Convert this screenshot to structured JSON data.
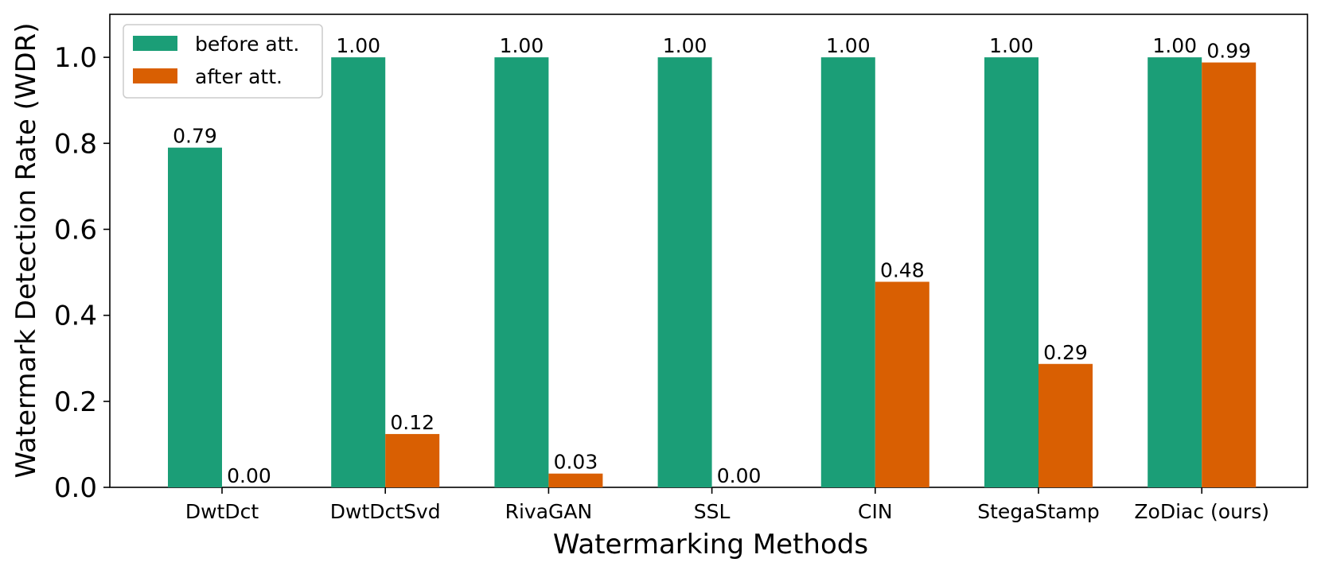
{
  "chart_data": {
    "type": "bar",
    "title": "",
    "xlabel": "Watermarking Methods",
    "ylabel": "Watermark Detection Rate (WDR)",
    "ylim": [
      0,
      1.1
    ],
    "yticks": [
      "0.0",
      "0.2",
      "0.4",
      "0.6",
      "0.8",
      "1.0"
    ],
    "grid": false,
    "legend_position": "top-left",
    "categories": [
      "DwtDct",
      "DwtDctSvd",
      "RivaGAN",
      "SSL",
      "CIN",
      "StegaStamp",
      "ZoDiac (ours)"
    ],
    "series": [
      {
        "name": "before att.",
        "color": "#1b9e77",
        "values": [
          0.79,
          1.0,
          1.0,
          1.0,
          1.0,
          1.0,
          1.0
        ],
        "labels": [
          "0.79",
          "1.00",
          "1.00",
          "1.00",
          "1.00",
          "1.00",
          "1.00"
        ]
      },
      {
        "name": "after att.",
        "color": "#d95f02",
        "values": [
          0.0,
          0.124,
          0.032,
          0.0,
          0.478,
          0.287,
          0.988
        ],
        "labels": [
          "0.00",
          "0.12",
          "0.03",
          "0.00",
          "0.48",
          "0.29",
          "0.99"
        ]
      }
    ]
  }
}
